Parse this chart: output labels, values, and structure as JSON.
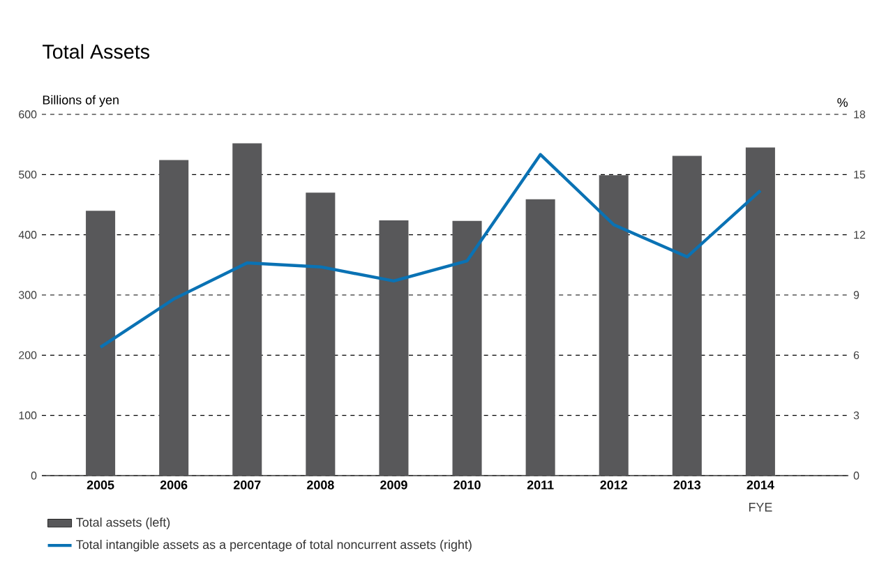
{
  "chart_data": {
    "type": "bar",
    "title": "Total Assets",
    "ylabel": "Billions of yen",
    "y2label": "%",
    "categories": [
      "2005",
      "2006",
      "2007",
      "2008",
      "2009",
      "2010",
      "2011",
      "2012",
      "2013",
      "2014"
    ],
    "series": [
      {
        "name": "Total assets (left)",
        "color": "#58585a",
        "values": [
          440,
          524,
          552,
          470,
          424,
          423,
          459,
          499,
          531,
          545
        ]
      },
      {
        "name": "Total intangible assets as a percentage of total noncurrent assets (right)",
        "type": "line",
        "axis": "y2",
        "color": "#0a72b4",
        "values": [
          6.4,
          8.8,
          10.6,
          10.4,
          9.7,
          10.7,
          16.0,
          12.5,
          10.9,
          14.2
        ]
      }
    ],
    "ylim": [
      0,
      600
    ],
    "yticks": [
      0,
      100,
      200,
      300,
      400,
      500,
      600
    ],
    "y2lim": [
      0,
      18
    ],
    "y2ticks": [
      0,
      3,
      6,
      9,
      12,
      15,
      18
    ],
    "annotations": [
      "FYE"
    ],
    "grid": "y",
    "legend": "bottom"
  }
}
